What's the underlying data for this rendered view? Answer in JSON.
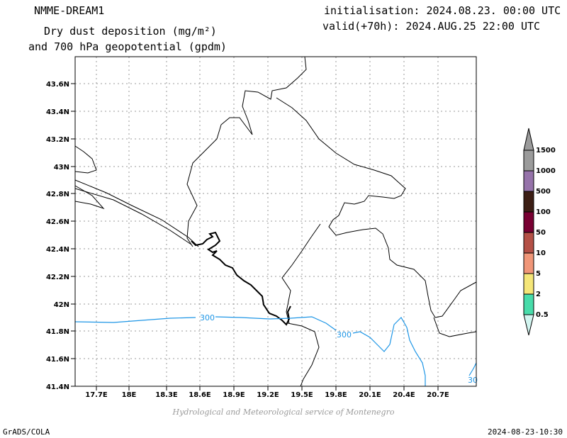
{
  "header": {
    "model": "NMME-DREAM1",
    "title_line1": "Dry dust deposition (mg/m²)",
    "title_line2": "and 700 hPa geopotential (gpdm)",
    "init": "initialisation: 2024.08.23. 00:00 UTC",
    "valid": "valid(+70h): 2024.AUG.25 22:00 UTC"
  },
  "map": {
    "lat_labels": [
      "43.6N",
      "43.4N",
      "43.2N",
      "43N",
      "42.8N",
      "42.6N",
      "42.4N",
      "42.2N",
      "42N",
      "41.8N",
      "41.6N",
      "41.4N"
    ],
    "lon_labels": [
      "17.7E",
      "18E",
      "18.3E",
      "18.6E",
      "18.9E",
      "19.2E",
      "19.5E",
      "19.8E",
      "20.1E",
      "20.4E",
      "20.7E"
    ],
    "contour_labels": [
      "300",
      "300",
      "30"
    ],
    "contour_color": "#1e96e6"
  },
  "legend": {
    "levels": [
      "0.5",
      "2",
      "5",
      "10",
      "50",
      "100",
      "500",
      "1000",
      "1500"
    ],
    "colors": [
      "#d2f5f0",
      "#48dcaa",
      "#f5e678",
      "#f09678",
      "#b45046",
      "#780032",
      "#3c1e14",
      "#9673aa",
      "#9b9b9b"
    ]
  },
  "footer": {
    "credit": "Hydrological and Meteorological service of Montenegro",
    "left": "GrADS/COLA",
    "right": "2024-08-23-10:30"
  }
}
